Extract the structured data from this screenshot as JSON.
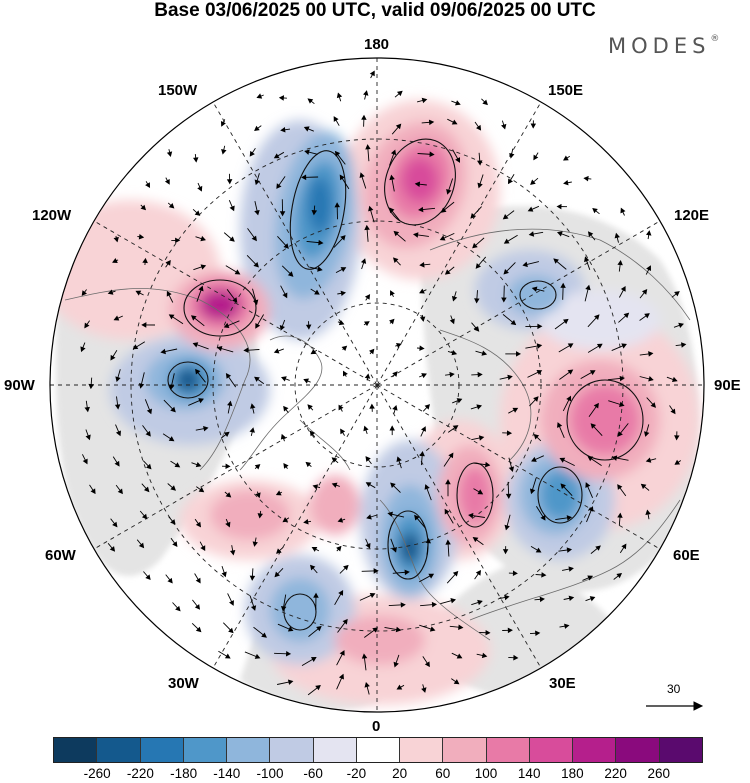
{
  "title": "Base 03/06/2025 00 UTC, valid 09/06/2025 00 UTC",
  "brand": {
    "name": "MODES",
    "mark": "®"
  },
  "longitude_labels": {
    "top": "180",
    "bottom": "0",
    "left": "90W",
    "right": "90E",
    "upper_left_1": "150W",
    "upper_left_2": "120W",
    "upper_right_1": "150E",
    "upper_right_2": "120E",
    "lower_left_1": "60W",
    "lower_left_2": "30W",
    "lower_right_1": "60E",
    "lower_right_2": "30E"
  },
  "reference_vector": {
    "value": "30"
  },
  "colorbar": {
    "colors": [
      "#0d3a5e",
      "#14598d",
      "#2677b3",
      "#4f97c9",
      "#8fb6dc",
      "#c0cbe4",
      "#e4e4f1",
      "#ffffff",
      "#f8d3d6",
      "#f1aebd",
      "#e87aa7",
      "#d84c9b",
      "#b51f8c",
      "#8a0a7d",
      "#5a0a6e"
    ],
    "ticks": [
      "-260",
      "-220",
      "-180",
      "-140",
      "-100",
      "-60",
      "-20",
      "20",
      "60",
      "100",
      "140",
      "180",
      "220",
      "260"
    ]
  },
  "colors": {
    "negative_strong": "#2677b3",
    "positive_strong": "#d84c9b",
    "land": "#e8e8e8"
  }
}
